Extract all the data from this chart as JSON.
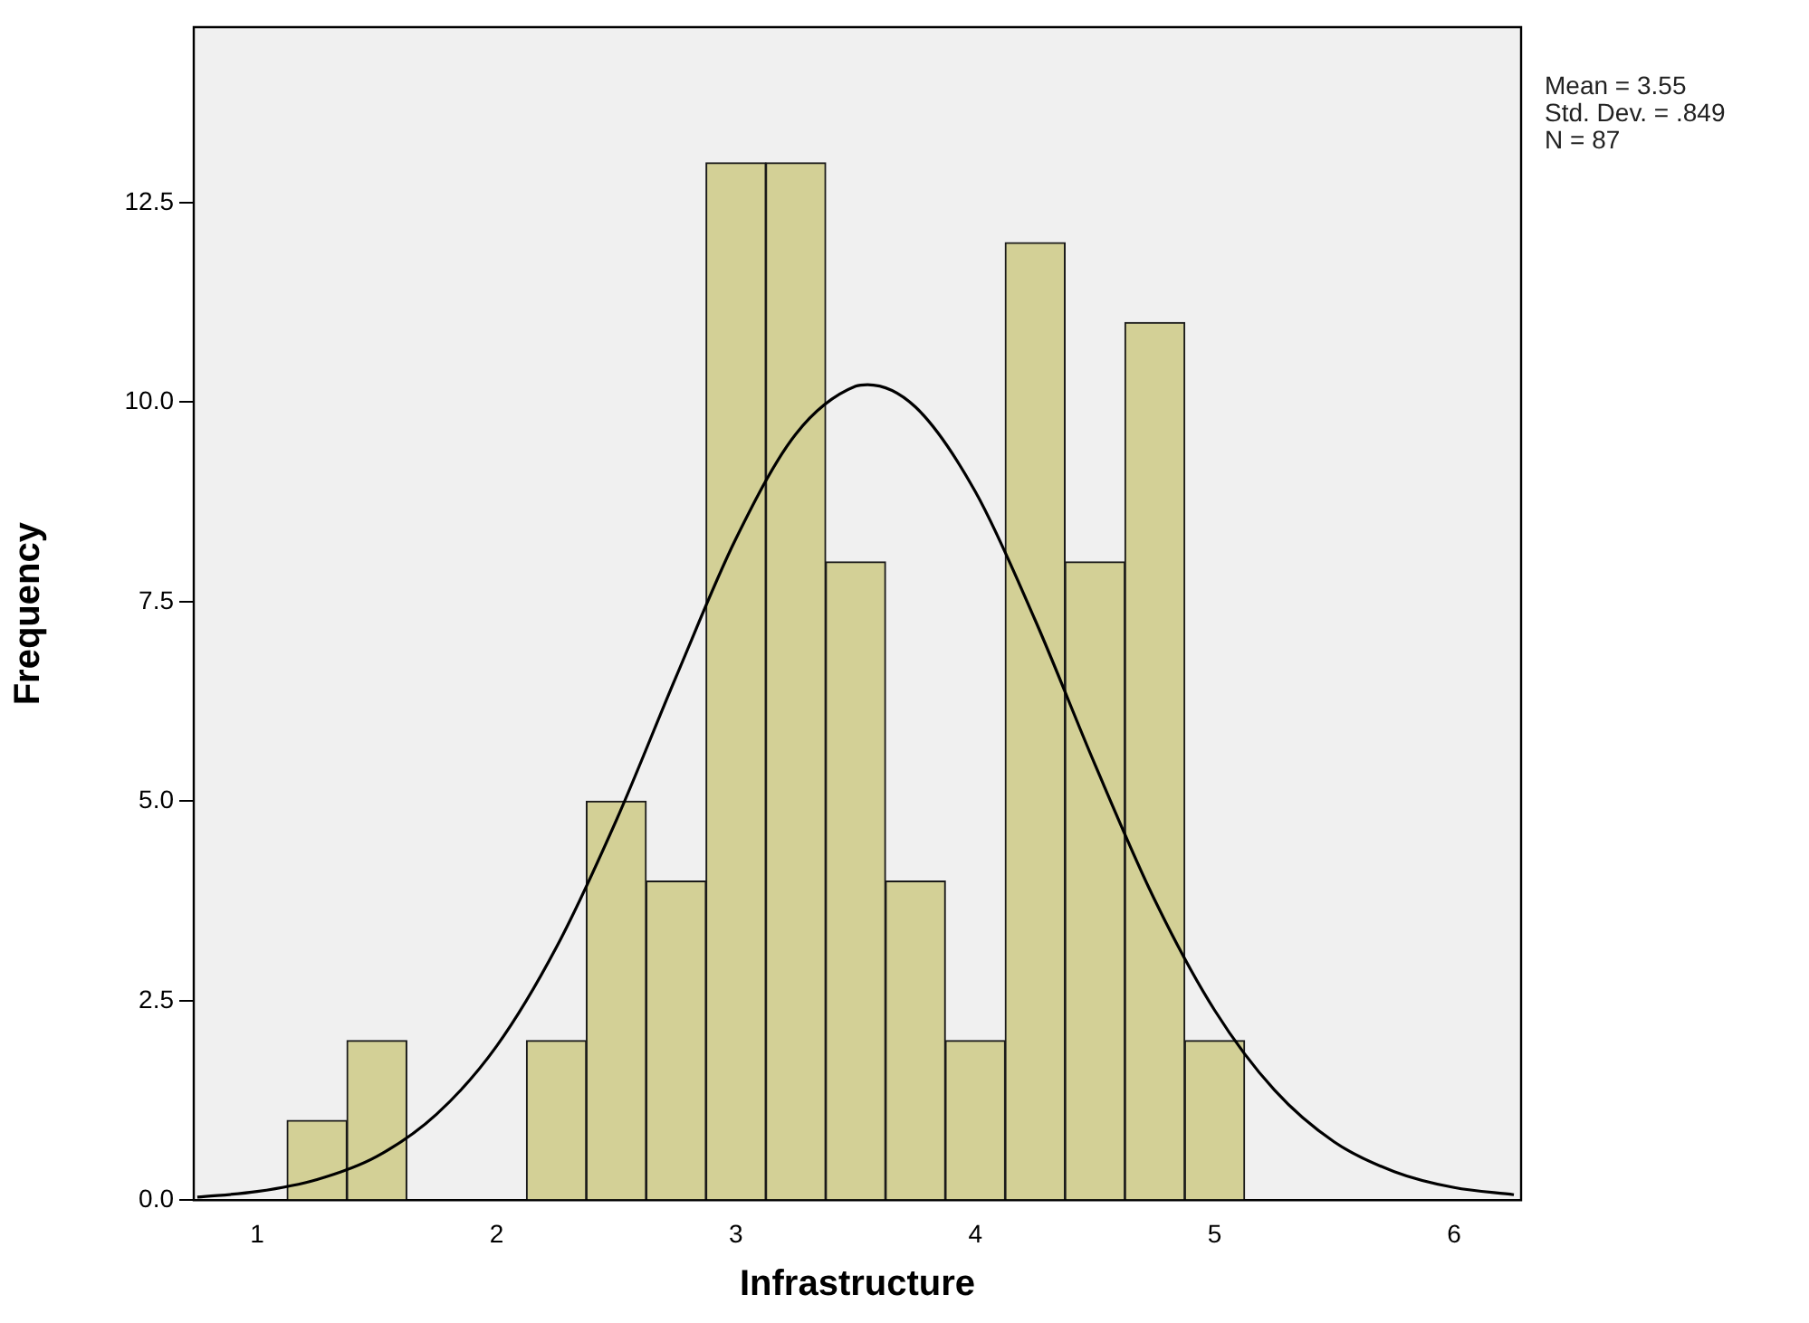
{
  "chart_data": {
    "type": "histogram",
    "xlabel": "Infrastructure",
    "ylabel": "Frequency",
    "bins": [
      1.125,
      1.375,
      1.625,
      1.875,
      2.125,
      2.375,
      2.625,
      2.875,
      3.125,
      3.375,
      3.625,
      3.875,
      4.125,
      4.375,
      4.625,
      4.875,
      5.125
    ],
    "values": [
      1,
      2,
      0,
      0,
      2,
      5,
      4,
      13,
      13,
      8,
      4,
      2,
      12,
      8,
      11,
      2
    ],
    "color": "#d3d096",
    "series": [
      {
        "type": "line",
        "color": "#000000",
        "marker": "none",
        "line_style": "solid",
        "x": [
          0.75,
          1.0,
          1.25,
          1.5,
          1.75,
          2.0,
          2.25,
          2.5,
          2.75,
          3.0,
          3.25,
          3.5,
          3.55,
          3.75,
          4.0,
          4.25,
          4.5,
          4.75,
          5.0,
          5.25,
          5.5,
          5.75,
          6.0,
          6.25
        ],
        "values": [
          0.04,
          0.11,
          0.26,
          0.55,
          1.08,
          1.93,
          3.17,
          4.76,
          6.56,
          8.29,
          9.6,
          10.2,
          10.22,
          9.94,
          8.88,
          7.27,
          5.46,
          3.76,
          2.38,
          1.38,
          0.73,
          0.36,
          0.16,
          0.07
        ]
      }
    ],
    "xlim": [
      0.735,
      6.28
    ],
    "xticks": [
      1,
      2,
      3,
      4,
      5,
      6
    ],
    "ylim": [
      0,
      14.7
    ],
    "yticks": [
      {
        "value": 0,
        "label": "0.0"
      },
      2.5,
      {
        "value": 5,
        "label": "5.0"
      },
      7.5,
      {
        "value": 10,
        "label": "10.0"
      },
      12.5
    ],
    "annotations": [
      "Mean = 3.55",
      "Std. Dev. = .849",
      "N = 87"
    ]
  }
}
